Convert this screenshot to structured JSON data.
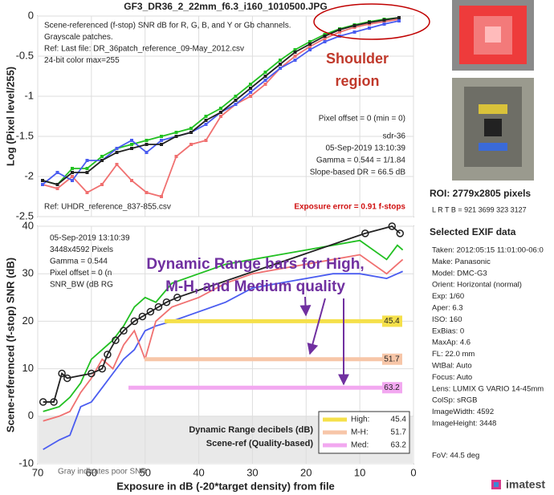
{
  "chart_data": [
    {
      "type": "line",
      "title": "GF3_DR36_2_22mm_f6.3_i160_1010500.JPG",
      "ylabel": "Log (Pixel level/255)",
      "ylim": [
        -2.5,
        0
      ],
      "yticks": [
        -2.5,
        -2,
        -1.5,
        -1,
        -0.5,
        0
      ],
      "grid": true,
      "notes": [
        "Scene-referenced (f-stop) SNR dB for R, G, B, and Y or Gb channels.",
        "Grayscale patches.",
        "Ref: Last file: DR_36patch_reference_09-May_2012.csv",
        "24-bit color  max=255"
      ],
      "right_notes": [
        "Pixel offset = 0  (min = 0)",
        "sdr-36",
        "05-Sep-2019 13:10:39",
        "Gamma = 0.544 = 1/1.84",
        "Slope-based DR = 66.5 dB"
      ],
      "ref_note": "Ref: UHDR_reference_837-855.csv",
      "exposure_error": "Exposure error = 0.91 f-stops",
      "shoulder_label": [
        "Shoulder",
        "region"
      ],
      "series": [
        {
          "color": "#f07070",
          "values": [
            -2.1,
            -2.15,
            -2.0,
            -2.2,
            -2.1,
            -1.85,
            -2.05,
            -2.2,
            -2.25,
            -1.75,
            -1.6,
            -1.55,
            -1.25,
            -1.1,
            -1.0,
            -0.85,
            -0.65,
            -0.5,
            -0.38,
            -0.28,
            -0.2,
            -0.14,
            -0.1,
            -0.07,
            -0.04
          ]
        },
        {
          "color": "#22c022",
          "values": [
            -2.05,
            -2.1,
            -1.9,
            -1.9,
            -1.75,
            -1.65,
            -1.6,
            -1.55,
            -1.5,
            -1.45,
            -1.4,
            -1.25,
            -1.15,
            -1.0,
            -0.85,
            -0.7,
            -0.55,
            -0.42,
            -0.32,
            -0.23,
            -0.16,
            -0.11,
            -0.07,
            -0.04,
            -0.02
          ]
        },
        {
          "color": "#4a5cf0",
          "values": [
            -2.1,
            -1.95,
            -2.05,
            -1.8,
            -1.8,
            -1.65,
            -1.55,
            -1.7,
            -1.55,
            -1.5,
            -1.45,
            -1.35,
            -1.2,
            -1.1,
            -0.95,
            -0.8,
            -0.65,
            -0.55,
            -0.42,
            -0.32,
            -0.25,
            -0.2,
            -0.15,
            -0.1,
            -0.06
          ]
        },
        {
          "color": "#222222",
          "values": [
            -2.05,
            -2.1,
            -1.95,
            -1.95,
            -1.8,
            -1.7,
            -1.65,
            -1.6,
            -1.6,
            -1.5,
            -1.45,
            -1.3,
            -1.2,
            -1.05,
            -0.9,
            -0.75,
            -0.6,
            -0.45,
            -0.35,
            -0.25,
            -0.17,
            -0.12,
            -0.08,
            -0.05,
            -0.02
          ]
        }
      ]
    },
    {
      "type": "line",
      "xlabel": "Exposure in dB (-20*target density)   from file",
      "ylabel": "Scene-referenced (f-stop) SNR (dB)",
      "xlim": [
        70,
        0
      ],
      "xticks": [
        70,
        60,
        50,
        40,
        30,
        20,
        10,
        0
      ],
      "ylim": [
        -10,
        40
      ],
      "yticks": [
        -10,
        0,
        10,
        20,
        30,
        40
      ],
      "grid": true,
      "notes": [
        "05-Sep-2019 13:10:39",
        "3448x4592 Pixels",
        "Gamma = 0.544",
        "Pixel offset = 0  (n",
        "SNR_BW (dB RG"
      ],
      "annotation": [
        "Dynamic Range bars for High,",
        "M-H, and Medium quality"
      ],
      "gray_note": "Gray indicates poor SNR",
      "legend_title": [
        "Dynamic Range decibels (dB)",
        "Scene-ref (Quality-based)"
      ],
      "series": [
        {
          "color": "#4a5cf0",
          "x": [
            69,
            66,
            64,
            62,
            60,
            58,
            56,
            54,
            52,
            50,
            48,
            45,
            40,
            35,
            30,
            25,
            20,
            15,
            10,
            5,
            3,
            2
          ],
          "values": [
            -7,
            -5,
            -4,
            2,
            3,
            6,
            9,
            12,
            14,
            18,
            19,
            20,
            22,
            24,
            27,
            28,
            29,
            30,
            30,
            29,
            30,
            30.5
          ]
        },
        {
          "color": "#f07070",
          "x": [
            69,
            66,
            64,
            62,
            60,
            58,
            56,
            54,
            52,
            50,
            48,
            45,
            40,
            35,
            30,
            25,
            20,
            15,
            10,
            5,
            3,
            2
          ],
          "values": [
            -1,
            0,
            1,
            5,
            8,
            12,
            10,
            15,
            18,
            12,
            20,
            23,
            25,
            28,
            30,
            31,
            32,
            33,
            34,
            30,
            32,
            33
          ]
        },
        {
          "color": "#22c022",
          "x": [
            69,
            66,
            64,
            62,
            60,
            58,
            56,
            54,
            52,
            50,
            48,
            45,
            40,
            35,
            30,
            25,
            20,
            15,
            10,
            5,
            3,
            2
          ],
          "values": [
            1,
            2,
            4,
            7,
            12,
            14,
            16,
            19,
            23,
            25,
            24,
            28,
            30,
            32,
            33,
            34,
            35,
            36,
            37,
            33,
            36,
            35
          ]
        },
        {
          "color": "#222222",
          "marker": "circle",
          "x": [
            69,
            67,
            65.5,
            64.5,
            60,
            58,
            57,
            55.5,
            54,
            52,
            50.5,
            49,
            47.5,
            46,
            44,
            9,
            4,
            2.5
          ],
          "values": [
            3,
            3,
            9,
            8,
            9,
            10,
            13,
            16,
            18,
            20,
            21,
            22,
            23,
            24,
            25,
            38.5,
            40,
            38.5
          ]
        }
      ],
      "dr_bars": [
        {
          "label": "High:",
          "value": 45.4,
          "level": 20,
          "color": "#f5e04a"
        },
        {
          "label": "M-H:",
          "value": 51.7,
          "level": 12,
          "color": "#f7c6a8"
        },
        {
          "label": "Med:",
          "value": 63.2,
          "level": 6,
          "color": "#f2a8f0"
        }
      ]
    }
  ],
  "sidebar": {
    "roi": "ROI:  2779x2805 pixels",
    "lrtb": "L R  T B = 921 3699  323 3127",
    "exif_title": "Selected EXIF data",
    "exif": [
      "Taken: 2012:05:15 11:01:00-06:0",
      "Make:  Panasonic",
      "Model:  DMC-G3",
      "Orient: Horizontal (normal)",
      "Exp:   1/60",
      "Aper:  6.3",
      "ISO:   160",
      "ExBias:  0",
      "MaxAp:  4.6",
      "FL:   22.0 mm",
      "WtBal:  Auto",
      "Focus:  Auto",
      "Lens:  LUMIX G VARIO 14-45mm",
      "ColSp:  sRGB",
      "ImageWidth:   4592",
      "ImageHeight:   3448"
    ],
    "fov": "FoV:     44.5 deg",
    "logo": "imatest"
  }
}
